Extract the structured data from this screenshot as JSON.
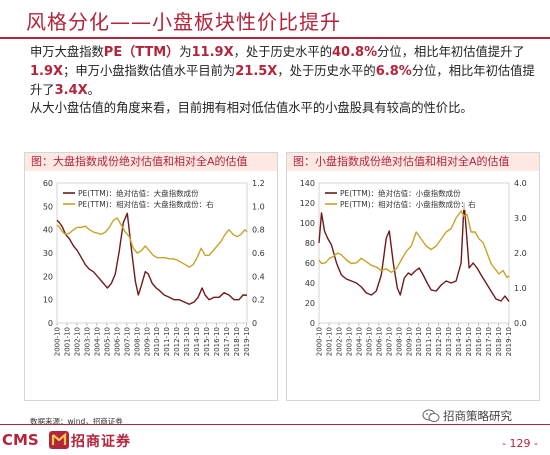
{
  "header": {
    "title": "风格分化——小盘板块性价比提升"
  },
  "para1": {
    "t1": "申万大盘指数",
    "h1": "PE（TTM）",
    "t2": "为",
    "h2": "11.9X",
    "t3": "，处于历史水平的",
    "h3": "40.8%",
    "t4": "分位，相比年初估值提升了",
    "h4": "1.9X",
    "t5": "；申万小盘指数估值水平目前为",
    "h5": "21.5X",
    "t6": "，处于历史水平的",
    "h6": "6.8%",
    "t7": "分位，相比年初估值提升了",
    "h7": "3.4X",
    "t8": "。"
  },
  "para2": {
    "text": "从大小盘估值的角度来看，目前拥有相对低估值水平的小盘股具有较高的性价比。"
  },
  "source": {
    "text": "数据来源：wind，招商证券"
  },
  "footer": {
    "logo_en": "CMS",
    "logo_cn": "招商证券",
    "wechat": "招商策略研究",
    "page": "- 129 -"
  },
  "colors": {
    "brand": "#b4243b",
    "pe_line": "#6e1a1a",
    "rel_line": "#c9a227",
    "figure_title_bg": "#fde8e4"
  },
  "chart_data": [
    {
      "type": "line",
      "title": "图：大盘指数成份绝对估值和相对全A的估值",
      "x_labels": [
        "2000-10",
        "2001-10",
        "2002-10",
        "2003-10",
        "2004-10",
        "2005-10",
        "2006-10",
        "2007-10",
        "2008-10",
        "2009-10",
        "2010-10",
        "2011-10",
        "2012-10",
        "2013-10",
        "2014-10",
        "2015-10",
        "2016-10",
        "2017-10",
        "2018-10",
        "2019-10"
      ],
      "y_left": {
        "range": [
          0,
          60
        ],
        "ticks": [
          0,
          10,
          20,
          30,
          40,
          50,
          60
        ]
      },
      "y_right": {
        "range": [
          0,
          1.2
        ],
        "ticks": [
          "0",
          "0.2",
          "0.4",
          "0.6",
          "0.8",
          "1.0",
          "1.2"
        ]
      },
      "legend_position": "top-left",
      "series": [
        {
          "name": "PE(TTM)：绝对估值：大盘指数成份",
          "axis": "left",
          "x": [
            2000.75,
            2001.0,
            2001.3,
            2001.6,
            2002.0,
            2002.4,
            2002.8,
            2003.2,
            2003.6,
            2004.0,
            2004.4,
            2004.8,
            2005.2,
            2005.6,
            2005.8,
            2006.2,
            2006.6,
            2007.0,
            2007.4,
            2007.8,
            2008.2,
            2008.6,
            2008.9,
            2009.2,
            2009.6,
            2009.9,
            2010.3,
            2010.7,
            2011.0,
            2011.5,
            2012.0,
            2012.5,
            2013.0,
            2013.5,
            2014.0,
            2014.5,
            2014.9,
            2015.3,
            2015.6,
            2016.0,
            2016.5,
            2017.0,
            2017.5,
            2018.0,
            2018.5,
            2019.0,
            2019.4,
            2019.8
          ],
          "values": [
            44,
            43,
            41,
            38,
            36,
            33,
            31,
            28,
            25,
            23,
            22,
            20,
            18,
            16,
            15,
            17,
            21,
            31,
            43,
            47,
            32,
            18,
            12,
            16,
            22,
            21,
            17,
            15,
            14,
            12,
            11,
            10,
            10,
            9,
            8,
            9,
            11,
            15,
            12,
            10,
            11,
            11,
            13,
            12,
            10,
            10,
            12,
            11.9
          ]
        },
        {
          "name": "PE(TTM)：相对估值：大盘指数成份：右",
          "axis": "right",
          "x": [
            2000.75,
            2001.0,
            2001.3,
            2001.6,
            2002.0,
            2002.4,
            2002.8,
            2003.2,
            2003.6,
            2004.0,
            2004.4,
            2004.8,
            2005.2,
            2005.6,
            2006.0,
            2006.4,
            2006.8,
            2007.2,
            2007.6,
            2008.0,
            2008.4,
            2008.8,
            2009.2,
            2009.6,
            2010.0,
            2010.4,
            2010.8,
            2011.2,
            2011.6,
            2012.0,
            2012.4,
            2012.8,
            2013.2,
            2013.6,
            2014.0,
            2014.4,
            2014.8,
            2015.2,
            2015.6,
            2016.0,
            2016.4,
            2016.8,
            2017.2,
            2017.6,
            2018.0,
            2018.4,
            2018.8,
            2019.2,
            2019.6,
            2019.8
          ],
          "values": [
            0.84,
            0.82,
            0.78,
            0.76,
            0.77,
            0.8,
            0.82,
            0.82,
            0.83,
            0.8,
            0.78,
            0.77,
            0.76,
            0.78,
            0.82,
            0.88,
            0.9,
            0.84,
            0.78,
            0.74,
            0.64,
            0.6,
            0.62,
            0.66,
            0.62,
            0.58,
            0.56,
            0.56,
            0.56,
            0.55,
            0.55,
            0.54,
            0.52,
            0.5,
            0.48,
            0.5,
            0.56,
            0.64,
            0.58,
            0.58,
            0.62,
            0.66,
            0.7,
            0.76,
            0.8,
            0.76,
            0.74,
            0.76,
            0.8,
            0.78
          ]
        }
      ]
    },
    {
      "type": "line",
      "title": "图：小盘指数成份绝对估值和相对全A的估值",
      "x_labels": [
        "2000-10",
        "2001-10",
        "2002-10",
        "2003-10",
        "2004-10",
        "2005-10",
        "2006-10",
        "2007-10",
        "2008-10",
        "2009-10",
        "2010-10",
        "2011-10",
        "2012-10",
        "2013-10",
        "2014-10",
        "2015-10",
        "2016-10",
        "2017-10",
        "2018-10",
        "2019-10"
      ],
      "y_left": {
        "range": [
          0,
          140
        ],
        "ticks": [
          0,
          20,
          40,
          60,
          80,
          100,
          120,
          140
        ]
      },
      "y_right": {
        "range": [
          0,
          4.0
        ],
        "ticks": [
          "0.0",
          "1.0",
          "2.0",
          "3.0",
          "4.0"
        ]
      },
      "legend_position": "top-left",
      "series": [
        {
          "name": "PE(TTM)：绝对估值：小盘指数成份",
          "axis": "left",
          "x": [
            2000.75,
            2001.0,
            2001.3,
            2001.6,
            2002.0,
            2002.5,
            2003.0,
            2003.5,
            2004.0,
            2004.5,
            2005.0,
            2005.5,
            2006.0,
            2006.5,
            2007.0,
            2007.5,
            2007.8,
            2008.2,
            2008.6,
            2008.9,
            2009.3,
            2009.7,
            2010.0,
            2010.4,
            2010.8,
            2011.2,
            2011.6,
            2012.0,
            2012.5,
            2013.0,
            2013.5,
            2014.0,
            2014.5,
            2015.0,
            2015.3,
            2015.5,
            2015.8,
            2016.2,
            2016.6,
            2017.0,
            2017.5,
            2018.0,
            2018.5,
            2019.0,
            2019.4,
            2019.8
          ],
          "values": [
            80,
            110,
            92,
            85,
            78,
            60,
            48,
            44,
            42,
            40,
            36,
            30,
            28,
            32,
            48,
            85,
            92,
            60,
            35,
            28,
            45,
            50,
            48,
            52,
            55,
            48,
            40,
            33,
            32,
            38,
            42,
            40,
            42,
            60,
            120,
            95,
            55,
            60,
            55,
            48,
            40,
            32,
            24,
            22,
            27,
            21.5
          ]
        },
        {
          "name": "PE(TTM)：相对估值：小盘指数成份：右",
          "axis": "right",
          "x": [
            2000.75,
            2001.0,
            2001.4,
            2001.8,
            2002.2,
            2002.6,
            2003.0,
            2003.5,
            2004.0,
            2004.5,
            2005.0,
            2005.5,
            2006.0,
            2006.5,
            2007.0,
            2007.5,
            2008.0,
            2008.5,
            2009.0,
            2009.5,
            2010.0,
            2010.5,
            2011.0,
            2011.5,
            2012.0,
            2012.5,
            2013.0,
            2013.5,
            2014.0,
            2014.5,
            2015.0,
            2015.3,
            2015.6,
            2016.0,
            2016.4,
            2016.8,
            2017.2,
            2017.6,
            2018.0,
            2018.4,
            2018.8,
            2019.2,
            2019.6,
            2019.8
          ],
          "values": [
            1.8,
            1.7,
            1.72,
            1.85,
            1.9,
            2.0,
            1.95,
            1.8,
            1.7,
            1.72,
            1.85,
            1.75,
            1.65,
            1.6,
            1.5,
            1.55,
            1.45,
            1.55,
            1.8,
            2.05,
            2.2,
            2.6,
            2.4,
            2.2,
            2.1,
            2.2,
            2.4,
            2.6,
            2.7,
            3.0,
            3.2,
            3.05,
            3.1,
            2.6,
            2.6,
            2.4,
            2.3,
            2.0,
            1.7,
            1.55,
            1.4,
            1.5,
            1.3,
            1.35
          ]
        }
      ]
    }
  ]
}
